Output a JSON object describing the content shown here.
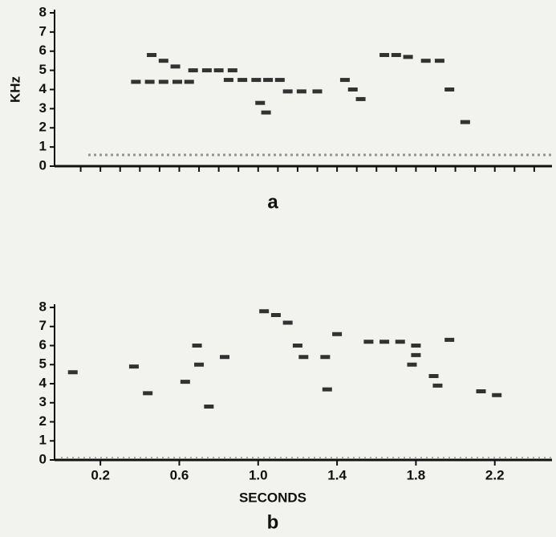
{
  "chart_data": [
    {
      "type": "spectrogram",
      "ylabel": "KHz",
      "caption": "a",
      "xlim": [
        0,
        2.49
      ],
      "ylim": [
        0,
        8
      ],
      "yticks": [
        0,
        1,
        2,
        3,
        4,
        5,
        6,
        7,
        8
      ],
      "xticks": [
        0.1,
        0.2,
        0.3,
        0.4,
        0.5,
        0.6,
        0.7,
        0.8,
        0.9,
        1,
        1.1,
        1.2,
        1.3,
        1.4,
        1.5,
        1.6,
        1.7,
        1.8,
        1.9,
        2,
        2.1,
        2.2,
        2.3,
        2.4
      ],
      "color": "#111111",
      "x": [
        0.38,
        0.45,
        0.52,
        0.59,
        0.65,
        0.46,
        0.52,
        0.58,
        0.67,
        0.74,
        0.8,
        0.87,
        0.85,
        0.92,
        0.99,
        1.05,
        1.11,
        1.01,
        1.04,
        1.15,
        1.22,
        1.3,
        1.44,
        1.48,
        1.52,
        1.64,
        1.7,
        1.76,
        1.85,
        1.92,
        1.97,
        2.05
      ],
      "values": [
        4.4,
        4.4,
        4.4,
        4.4,
        4.4,
        5.8,
        5.5,
        5.2,
        5.0,
        5.0,
        5.0,
        5.0,
        4.5,
        4.5,
        4.5,
        4.5,
        4.5,
        3.3,
        2.8,
        3.9,
        3.9,
        3.9,
        4.5,
        4.0,
        3.5,
        5.8,
        5.8,
        5.7,
        5.5,
        5.5,
        4.0,
        2.3
      ]
    },
    {
      "type": "spectrogram",
      "xlabel": "SECONDS",
      "caption": "b",
      "xlim": [
        0,
        2.49
      ],
      "ylim": [
        0,
        8
      ],
      "yticks": [
        0,
        1,
        2,
        3,
        4,
        5,
        6,
        7,
        8
      ],
      "xticks": [
        0.2,
        0.6,
        {
          "value": 1,
          "label": "1.0"
        },
        1.4,
        1.8,
        2.2
      ],
      "color": "#111111",
      "x": [
        0.06,
        0.37,
        0.44,
        0.63,
        0.69,
        0.7,
        0.75,
        0.83,
        1.03,
        1.09,
        1.15,
        1.2,
        1.23,
        1.34,
        1.35,
        1.4,
        1.56,
        1.64,
        1.72,
        1.78,
        1.8,
        1.8,
        1.89,
        1.91,
        1.97,
        2.13,
        2.21
      ],
      "values": [
        4.6,
        4.9,
        3.5,
        4.1,
        6.0,
        5.0,
        2.8,
        5.4,
        7.8,
        7.6,
        7.2,
        6.0,
        5.4,
        5.4,
        3.7,
        6.6,
        6.2,
        6.2,
        6.2,
        5.0,
        5.5,
        6.0,
        4.4,
        3.9,
        6.3,
        3.6,
        3.4
      ]
    }
  ]
}
